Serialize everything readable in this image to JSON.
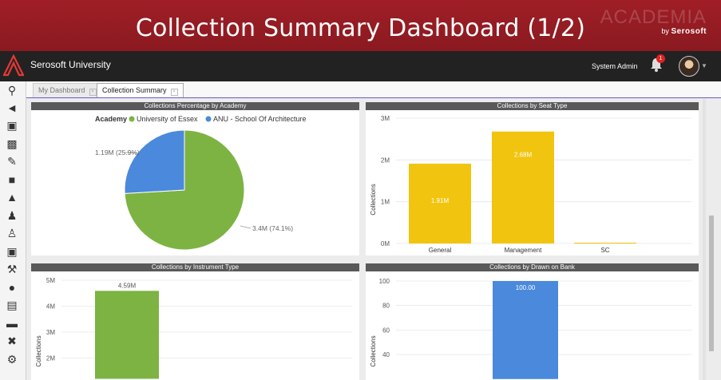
{
  "banner": {
    "title": "Collection Summary Dashboard (1/2)",
    "brand": "ACADEMIA",
    "by": "by",
    "company": "Serosoft"
  },
  "topbar": {
    "university": "Serosoft University",
    "user": "System Admin",
    "notification_count": "1"
  },
  "sidebar": {
    "icons": [
      "search-icon",
      "volume-icon",
      "id-card-icon",
      "calendar-icon",
      "edit-icon",
      "camera-icon",
      "graduation-icon",
      "users-icon",
      "person-icon",
      "briefcase-icon",
      "wrench-icon",
      "award-icon",
      "bus-icon",
      "bed-icon",
      "tools-icon",
      "settings-icon"
    ]
  },
  "tabs": [
    {
      "label": "My Dashboard"
    },
    {
      "label": "Collection Summary"
    }
  ],
  "panels": {
    "academy": {
      "title": "Collections Percentage by Academy",
      "legend_title": "Academy",
      "legend": [
        {
          "label": "University of Essex",
          "color": "#7cb342"
        },
        {
          "label": "ANU - School Of Architecture",
          "color": "#4a89dc"
        }
      ],
      "slice_labels": [
        "3.4M (74.1%)",
        "1.19M (25.9%)"
      ]
    },
    "seat": {
      "title": "Collections by Seat Type",
      "ylabel": "Collections"
    },
    "instrument": {
      "title": "Collections by Instrument Type",
      "ylabel": "Collections"
    },
    "bank": {
      "title": "Collections by Drawn on Bank",
      "ylabel": "Collections"
    }
  },
  "chart_data": [
    {
      "type": "pie",
      "title": "Collections Percentage by Academy",
      "legend_title": "Academy",
      "categories": [
        "University of Essex",
        "ANU - School Of Architecture"
      ],
      "values": [
        3.4,
        1.19
      ],
      "percent": [
        74.1,
        25.9
      ],
      "unit": "M",
      "colors": [
        "#7cb342",
        "#4a89dc"
      ]
    },
    {
      "type": "bar",
      "title": "Collections by Seat Type",
      "ylabel": "Collections",
      "categories": [
        "General",
        "Management",
        "SC"
      ],
      "values": [
        1.91,
        2.68,
        0.0
      ],
      "data_labels": [
        "1.91M",
        "2.68M",
        ""
      ],
      "yticks": [
        "0M",
        "1M",
        "2M",
        "3M"
      ],
      "ylim": [
        0,
        3
      ],
      "color": "#f1c40f"
    },
    {
      "type": "bar",
      "title": "Collections by Instrument Type",
      "ylabel": "Collections",
      "values": [
        4.59
      ],
      "data_labels": [
        "4.59M"
      ],
      "yticks": [
        "2M",
        "3M",
        "4M",
        "5M"
      ],
      "ylim": [
        0,
        5
      ],
      "color": "#7cb342"
    },
    {
      "type": "bar",
      "title": "Collections by Drawn on Bank",
      "ylabel": "Collections",
      "values": [
        100.0
      ],
      "data_labels": [
        "100.00"
      ],
      "yticks": [
        "40",
        "60",
        "80",
        "100"
      ],
      "ylim": [
        0,
        100
      ],
      "color": "#4a89dc"
    }
  ]
}
